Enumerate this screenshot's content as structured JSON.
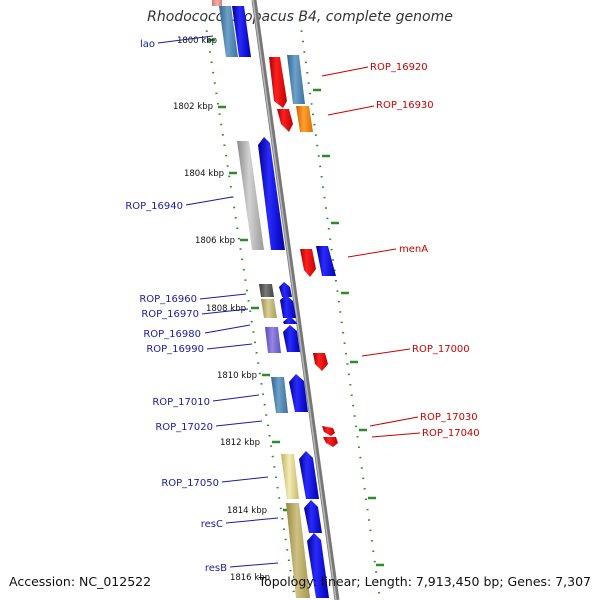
{
  "title": "Rhodococcus opacus B4, complete genome",
  "footer": {
    "accession": "Accession: NC_012522",
    "summary": "Topology: linear; Length: 7,913,450 bp; Genes: 7,307"
  },
  "colors": {
    "forward_label": "#1a1aa8",
    "reverse_label": "#cc0000",
    "tick": "#2d8a2d",
    "strand_line": "#8a8a8a",
    "forward_gene": "#0000ee",
    "reverse_gene": "#ee0000"
  },
  "scale_labels": [
    "1800 kbp",
    "1802 kbp",
    "1804 kbp",
    "1806 kbp",
    "1808 kbp",
    "1810 kbp",
    "1812 kbp",
    "1814 kbp",
    "1816 kbp"
  ],
  "forward_gene_labels": [
    "lao",
    "ROP_16940",
    "ROP_16960",
    "ROP_16970",
    "ROP_16980",
    "ROP_16990",
    "ROP_17010",
    "ROP_17020",
    "ROP_17050",
    "resC",
    "resB"
  ],
  "reverse_gene_labels": [
    "ROP_16920",
    "ROP_16930",
    "menA",
    "ROP_17000",
    "ROP_17030",
    "ROP_17040"
  ]
}
